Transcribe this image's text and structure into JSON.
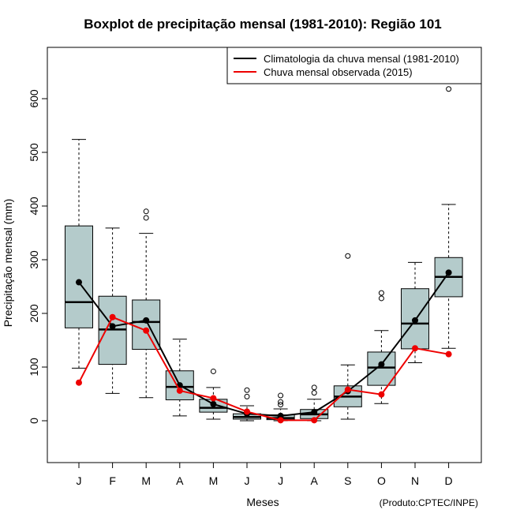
{
  "chart_data": {
    "type": "boxplot",
    "title": "Boxplot de precipitação mensal (1981-2010): Região 101",
    "xlabel": "Meses",
    "ylabel": "Precipitação mensal (mm)",
    "ylim": [
      -80,
      700
    ],
    "yticks": [
      0,
      100,
      200,
      300,
      400,
      500,
      600
    ],
    "credit": "(Produto:CPTEC/INPE)",
    "categories": [
      "J",
      "F",
      "M",
      "A",
      "M",
      "J",
      "J",
      "A",
      "S",
      "O",
      "N",
      "D"
    ],
    "box_fill": "#b4cbcb",
    "boxes": [
      {
        "min": 98,
        "q1": 173,
        "median": 221,
        "q3": 363,
        "max": 524,
        "outliers": []
      },
      {
        "min": 51,
        "q1": 105,
        "median": 170,
        "q3": 232,
        "max": 359,
        "outliers": []
      },
      {
        "min": 43,
        "q1": 133,
        "median": 184,
        "q3": 225,
        "max": 349,
        "outliers": [
          378,
          390
        ]
      },
      {
        "min": 9,
        "q1": 39,
        "median": 63,
        "q3": 93,
        "max": 152,
        "outliers": []
      },
      {
        "min": 3,
        "q1": 16,
        "median": 24,
        "q3": 40,
        "max": 62,
        "outliers": [
          92
        ]
      },
      {
        "min": 0,
        "q1": 3,
        "median": 7,
        "q3": 13,
        "max": 28,
        "outliers": [
          45,
          57
        ]
      },
      {
        "min": 0,
        "q1": 2,
        "median": 5,
        "q3": 11,
        "max": 22,
        "outliers": [
          30,
          35,
          47
        ]
      },
      {
        "min": 0,
        "q1": 4,
        "median": 12,
        "q3": 21,
        "max": 40,
        "outliers": [
          52,
          62
        ]
      },
      {
        "min": 3,
        "q1": 26,
        "median": 45,
        "q3": 65,
        "max": 104,
        "outliers": [
          307
        ]
      },
      {
        "min": 32,
        "q1": 66,
        "median": 99,
        "q3": 128,
        "max": 168,
        "outliers": [
          228,
          238
        ]
      },
      {
        "min": 108,
        "q1": 134,
        "median": 181,
        "q3": 246,
        "max": 295,
        "outliers": []
      },
      {
        "min": 135,
        "q1": 231,
        "median": 268,
        "q3": 304,
        "max": 403,
        "outliers": [
          618
        ]
      }
    ],
    "series": [
      {
        "name": "Climatologia da chuva mensal (1981-2010)",
        "color": "#000000",
        "values": [
          258,
          176,
          187,
          66,
          31,
          13,
          9,
          16,
          55,
          105,
          187,
          276
        ]
      },
      {
        "name": "Chuva mensal observada (2015)",
        "color": "#ee0000",
        "values": [
          71,
          193,
          168,
          56,
          42,
          17,
          1,
          1,
          58,
          49,
          135,
          124
        ]
      }
    ]
  }
}
